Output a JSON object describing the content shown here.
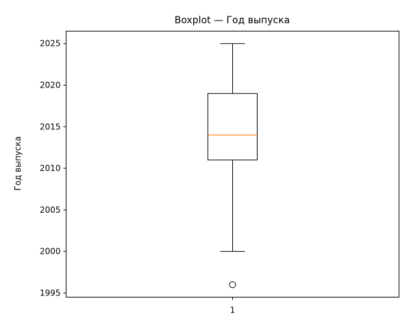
{
  "chart_data": {
    "type": "box",
    "title": "Boxplot — Год выпуска",
    "xlabel": "",
    "ylabel": "Год выпуска",
    "categories": [
      "1"
    ],
    "ylim": [
      1994.5,
      2026.5
    ],
    "yticks": [
      1995,
      2000,
      2005,
      2010,
      2015,
      2020,
      2025
    ],
    "grid": false,
    "boxes": [
      {
        "category": "1",
        "whisker_low": 2000,
        "q1": 2011,
        "median": 2014,
        "q3": 2019,
        "whisker_high": 2025,
        "outliers": [
          1996
        ]
      }
    ],
    "colors": {
      "box": "#000000",
      "median": "#ff7f0e",
      "background": "#ffffff"
    }
  }
}
